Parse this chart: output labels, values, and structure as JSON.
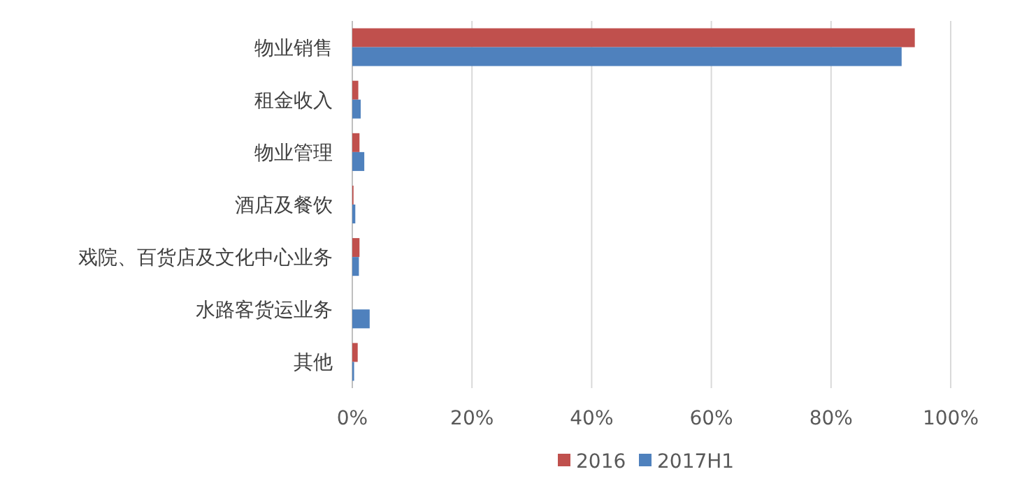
{
  "chart_data": {
    "type": "bar",
    "orientation": "horizontal",
    "categories": [
      "物业销售",
      "租金收入",
      "物业管理",
      "酒店及餐饮",
      "戏院、百货店及文化中心业务",
      "水路客货运业务",
      "其他"
    ],
    "series": [
      {
        "name": "2016",
        "color": "#c0504d",
        "values": [
          94,
          1,
          1.2,
          0.2,
          1.2,
          0,
          0.9
        ]
      },
      {
        "name": "2017H1",
        "color": "#4f81bd",
        "values": [
          91.8,
          1.4,
          2,
          0.5,
          1.1,
          2.9,
          0.3
        ]
      }
    ],
    "xlim": [
      0,
      100
    ],
    "xticks": [
      {
        "value": 0,
        "label": "0%"
      },
      {
        "value": 20,
        "label": "20%"
      },
      {
        "value": 40,
        "label": "40%"
      },
      {
        "value": 60,
        "label": "60%"
      },
      {
        "value": 80,
        "label": "80%"
      },
      {
        "value": 100,
        "label": "100%"
      }
    ],
    "grid": "x",
    "legend": "bottom"
  }
}
